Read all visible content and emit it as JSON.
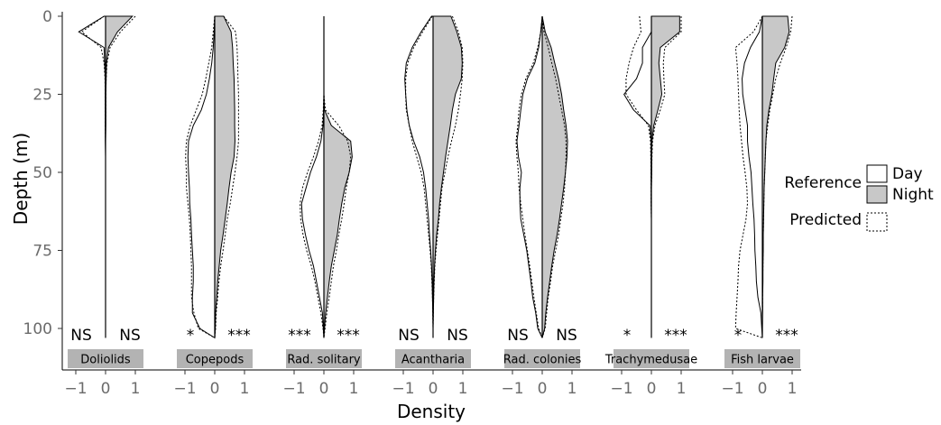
{
  "chart_data": {
    "type": "area",
    "xlabel": "Density",
    "ylabel": "Depth (m)",
    "xlim": [
      -1,
      1
    ],
    "ylim": [
      0,
      103
    ],
    "y_reversed": true,
    "y_ticks": [
      0,
      25,
      50,
      75,
      100
    ],
    "x_ticks": [
      {
        "value": -1,
        "label": "−1"
      },
      {
        "value": 0,
        "label": "0"
      },
      {
        "value": 1,
        "label": "1"
      }
    ],
    "legend": {
      "reference_label": "Reference",
      "day_label": "Day",
      "night_label": "Night",
      "predicted_label": "Predicted",
      "placement": "right"
    },
    "colors": {
      "night_fill": "#c8c8c8",
      "day_fill": "#ffffff",
      "strip": "#b3b3b3",
      "line": "#000000",
      "tick_text": "#6b6b6b"
    },
    "depth_grid": [
      0,
      5,
      10,
      15,
      20,
      25,
      30,
      35,
      40,
      45,
      50,
      55,
      60,
      65,
      70,
      75,
      80,
      85,
      90,
      95,
      100,
      103
    ],
    "panels": [
      {
        "name": "Doliolids",
        "day_sig": "NS",
        "night_sig": "NS",
        "day_ref": [
          0.05,
          0.9,
          0.05,
          0.03,
          0.01,
          0.01,
          0.01,
          0.01,
          0.01,
          0.0,
          0.0,
          0.0,
          0.0,
          0.0,
          0.0,
          0.0,
          0.0,
          0.0,
          0.0,
          0.0,
          0.0,
          0.0
        ],
        "day_pred": [
          0.05,
          0.8,
          0.15,
          0.05,
          0.02,
          0.01,
          0.01,
          0.01,
          0.0,
          0.0,
          0.0,
          0.0,
          0.0,
          0.0,
          0.0,
          0.0,
          0.0,
          0.0,
          0.0,
          0.0,
          0.0,
          0.0
        ],
        "night_ref": [
          0.9,
          0.4,
          0.1,
          0.03,
          0.02,
          0.01,
          0.01,
          0.01,
          0.0,
          0.0,
          0.0,
          0.0,
          0.0,
          0.0,
          0.0,
          0.0,
          0.0,
          0.0,
          0.0,
          0.0,
          0.0,
          0.0
        ],
        "night_pred": [
          1.0,
          0.5,
          0.15,
          0.05,
          0.02,
          0.01,
          0.01,
          0.0,
          0.0,
          0.0,
          0.0,
          0.0,
          0.0,
          0.0,
          0.0,
          0.0,
          0.0,
          0.0,
          0.0,
          0.0,
          0.0,
          0.0
        ]
      },
      {
        "name": "Copepods",
        "day_sig": "*",
        "night_sig": "***",
        "day_ref": [
          0.0,
          0.02,
          0.05,
          0.1,
          0.18,
          0.28,
          0.45,
          0.72,
          0.88,
          0.9,
          0.88,
          0.85,
          0.84,
          0.8,
          0.78,
          0.75,
          0.72,
          0.72,
          0.75,
          0.75,
          0.5,
          0.0
        ],
        "day_pred": [
          0.0,
          0.05,
          0.1,
          0.2,
          0.3,
          0.42,
          0.62,
          0.82,
          0.95,
          0.98,
          0.95,
          0.95,
          0.9,
          0.85,
          0.82,
          0.8,
          0.78,
          0.78,
          0.78,
          0.7,
          0.55,
          0.0
        ],
        "night_ref": [
          0.3,
          0.55,
          0.6,
          0.62,
          0.65,
          0.66,
          0.67,
          0.67,
          0.68,
          0.65,
          0.55,
          0.48,
          0.42,
          0.35,
          0.28,
          0.2,
          0.15,
          0.1,
          0.07,
          0.03,
          0.02,
          0.0
        ],
        "night_pred": [
          0.3,
          0.7,
          0.75,
          0.77,
          0.78,
          0.8,
          0.8,
          0.8,
          0.8,
          0.75,
          0.68,
          0.6,
          0.52,
          0.42,
          0.35,
          0.28,
          0.2,
          0.14,
          0.1,
          0.05,
          0.03,
          0.0
        ]
      },
      {
        "name": "Rad. solitary",
        "day_sig": "***",
        "night_sig": "***",
        "day_ref": [
          0.0,
          0.0,
          0.0,
          0.0,
          0.0,
          0.0,
          0.01,
          0.03,
          0.1,
          0.25,
          0.45,
          0.6,
          0.75,
          0.72,
          0.62,
          0.5,
          0.35,
          0.25,
          0.15,
          0.05,
          0.02,
          0.0
        ],
        "day_pred": [
          0.0,
          0.0,
          0.0,
          0.0,
          0.0,
          0.0,
          0.02,
          0.06,
          0.18,
          0.35,
          0.55,
          0.72,
          0.8,
          0.78,
          0.7,
          0.58,
          0.42,
          0.3,
          0.2,
          0.1,
          0.03,
          0.0
        ],
        "night_ref": [
          0.0,
          0.0,
          0.0,
          0.0,
          0.0,
          0.0,
          0.02,
          0.25,
          0.9,
          0.95,
          0.85,
          0.7,
          0.6,
          0.52,
          0.45,
          0.35,
          0.25,
          0.18,
          0.12,
          0.06,
          0.02,
          0.0
        ],
        "night_pred": [
          0.0,
          0.0,
          0.0,
          0.0,
          0.0,
          0.0,
          0.05,
          0.5,
          0.8,
          0.9,
          0.85,
          0.75,
          0.68,
          0.6,
          0.5,
          0.42,
          0.32,
          0.25,
          0.18,
          0.1,
          0.04,
          0.0
        ]
      },
      {
        "name": "Acantharia",
        "day_sig": "NS",
        "night_sig": "NS",
        "day_ref": [
          0.05,
          0.4,
          0.7,
          0.9,
          0.95,
          0.92,
          0.88,
          0.8,
          0.65,
          0.45,
          0.32,
          0.25,
          0.2,
          0.15,
          0.12,
          0.08,
          0.05,
          0.03,
          0.02,
          0.01,
          0.0,
          0.0
        ],
        "day_pred": [
          0.03,
          0.35,
          0.65,
          0.85,
          0.92,
          0.92,
          0.9,
          0.8,
          0.7,
          0.55,
          0.4,
          0.3,
          0.25,
          0.2,
          0.15,
          0.1,
          0.06,
          0.04,
          0.02,
          0.01,
          0.0,
          0.0
        ],
        "night_ref": [
          0.6,
          0.8,
          0.95,
          0.98,
          0.95,
          0.75,
          0.65,
          0.58,
          0.5,
          0.42,
          0.35,
          0.28,
          0.22,
          0.18,
          0.12,
          0.08,
          0.05,
          0.03,
          0.02,
          0.01,
          0.0,
          0.0
        ],
        "night_pred": [
          0.65,
          0.85,
          0.98,
          1.0,
          0.98,
          0.92,
          0.85,
          0.75,
          0.62,
          0.5,
          0.4,
          0.3,
          0.25,
          0.2,
          0.15,
          0.1,
          0.06,
          0.04,
          0.02,
          0.01,
          0.0,
          0.0
        ]
      },
      {
        "name": "Rad. colonies",
        "day_sig": "NS",
        "night_sig": "NS",
        "day_ref": [
          0.0,
          0.05,
          0.12,
          0.25,
          0.5,
          0.65,
          0.72,
          0.78,
          0.85,
          0.8,
          0.7,
          0.75,
          0.75,
          0.72,
          0.62,
          0.52,
          0.45,
          0.38,
          0.32,
          0.22,
          0.15,
          0.0
        ],
        "day_pred": [
          0.0,
          0.05,
          0.15,
          0.3,
          0.55,
          0.7,
          0.78,
          0.82,
          0.88,
          0.85,
          0.8,
          0.78,
          0.72,
          0.65,
          0.58,
          0.5,
          0.42,
          0.35,
          0.28,
          0.2,
          0.12,
          0.0
        ],
        "night_ref": [
          0.0,
          0.1,
          0.3,
          0.42,
          0.55,
          0.65,
          0.72,
          0.8,
          0.85,
          0.83,
          0.78,
          0.72,
          0.65,
          0.58,
          0.5,
          0.4,
          0.32,
          0.25,
          0.18,
          0.12,
          0.08,
          0.0
        ],
        "night_pred": [
          0.0,
          0.06,
          0.2,
          0.32,
          0.45,
          0.55,
          0.65,
          0.75,
          0.8,
          0.8,
          0.78,
          0.75,
          0.7,
          0.62,
          0.55,
          0.45,
          0.35,
          0.28,
          0.2,
          0.15,
          0.1,
          0.0
        ]
      },
      {
        "name": "Trachymedusae",
        "day_sig": "*",
        "night_sig": "***",
        "day_ref": [
          0.0,
          0.0,
          0.3,
          0.3,
          0.5,
          0.92,
          0.6,
          0.05,
          0.01,
          0.01,
          0.01,
          0.01,
          0.01,
          0.0,
          0.0,
          0.0,
          0.0,
          0.0,
          0.0,
          0.0,
          0.0,
          0.0
        ],
        "day_pred": [
          0.4,
          0.35,
          0.6,
          0.75,
          0.85,
          0.85,
          0.5,
          0.1,
          0.03,
          0.02,
          0.01,
          0.01,
          0.01,
          0.0,
          0.0,
          0.0,
          0.0,
          0.0,
          0.0,
          0.0,
          0.0,
          0.0
        ],
        "night_ref": [
          0.95,
          0.95,
          0.3,
          0.25,
          0.3,
          0.35,
          0.22,
          0.08,
          0.02,
          0.01,
          0.01,
          0.0,
          0.0,
          0.0,
          0.0,
          0.0,
          0.0,
          0.0,
          0.0,
          0.0,
          0.0,
          0.0
        ],
        "night_pred": [
          1.0,
          1.0,
          0.45,
          0.4,
          0.42,
          0.45,
          0.3,
          0.12,
          0.04,
          0.02,
          0.01,
          0.0,
          0.0,
          0.0,
          0.0,
          0.0,
          0.0,
          0.0,
          0.0,
          0.0,
          0.0,
          0.0
        ]
      },
      {
        "name": "Fish larvae",
        "day_sig": "*",
        "night_sig": "***",
        "day_ref": [
          0.0,
          0.1,
          0.4,
          0.6,
          0.68,
          0.66,
          0.58,
          0.5,
          0.5,
          0.45,
          0.38,
          0.35,
          0.32,
          0.28,
          0.26,
          0.25,
          0.22,
          0.2,
          0.15,
          0.05,
          0.02,
          0.0
        ],
        "day_pred": [
          0.0,
          0.3,
          0.9,
          0.85,
          0.82,
          0.8,
          0.78,
          0.75,
          0.7,
          0.65,
          0.58,
          0.52,
          0.5,
          0.55,
          0.65,
          0.75,
          0.8,
          0.82,
          0.85,
          0.88,
          0.9,
          0.0
        ],
        "night_ref": [
          0.85,
          0.9,
          0.75,
          0.45,
          0.38,
          0.32,
          0.22,
          0.15,
          0.12,
          0.1,
          0.08,
          0.06,
          0.05,
          0.04,
          0.03,
          0.03,
          0.02,
          0.02,
          0.01,
          0.01,
          0.0,
          0.0
        ],
        "night_pred": [
          1.0,
          0.95,
          0.8,
          0.6,
          0.45,
          0.35,
          0.25,
          0.18,
          0.12,
          0.1,
          0.08,
          0.06,
          0.05,
          0.04,
          0.03,
          0.02,
          0.02,
          0.01,
          0.01,
          0.0,
          0.0,
          0.0
        ]
      }
    ]
  }
}
